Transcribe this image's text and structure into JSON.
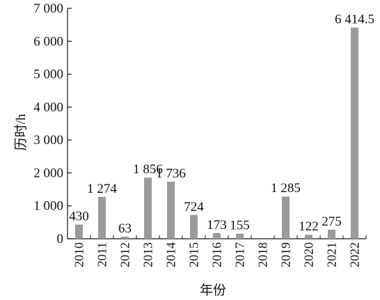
{
  "chart_data": {
    "type": "bar",
    "title": "",
    "xlabel": "年份",
    "ylabel": "历时/h",
    "ylim": [
      0,
      7000
    ],
    "yticks": [
      0,
      1000,
      2000,
      3000,
      4000,
      5000,
      6000,
      7000
    ],
    "ytick_labels": [
      "0",
      "1 000",
      "2 000",
      "3 000",
      "4 000",
      "5 000",
      "6 000",
      "7 000"
    ],
    "categories": [
      "2010",
      "2011",
      "2012",
      "2013",
      "2014",
      "2015",
      "2016",
      "2017",
      "2018",
      "2019",
      "2020",
      "2021",
      "2022"
    ],
    "values": [
      430,
      1274,
      63,
      1856,
      1736,
      724,
      173,
      155,
      0,
      1285,
      122,
      275,
      6414.5
    ],
    "data_labels": [
      "430",
      "1 274",
      "63",
      "1 856",
      "1 736",
      "724",
      "173",
      "155",
      "",
      "1 285",
      "122",
      "275",
      "6 414.5"
    ],
    "bar_color": "#9a9a9a",
    "grid": false,
    "legend": "none"
  }
}
